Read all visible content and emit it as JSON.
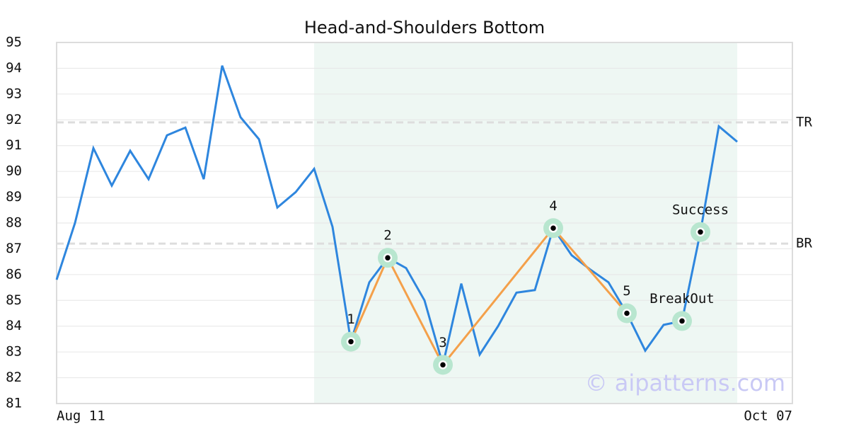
{
  "chart_data": {
    "type": "line",
    "title": "Head-and-Shoulders Bottom",
    "categories": [
      "Aug 11",
      null,
      null,
      null,
      null,
      null,
      null,
      null,
      null,
      null,
      null,
      null,
      null,
      null,
      null,
      null,
      null,
      null,
      null,
      null,
      null,
      null,
      null,
      null,
      null,
      null,
      null,
      null,
      null,
      null,
      null,
      null,
      null,
      null,
      null,
      null,
      null,
      null,
      null,
      null,
      "Oct 07"
    ],
    "values": [
      85.8,
      88.0,
      90.9,
      89.45,
      90.8,
      89.7,
      91.4,
      91.7,
      89.7,
      94.1,
      92.1,
      91.25,
      88.6,
      89.2,
      90.1,
      87.85,
      83.4,
      85.7,
      86.65,
      86.25,
      85.0,
      82.5,
      85.65,
      82.9,
      84.0,
      85.3,
      85.4,
      87.8,
      86.75,
      86.2,
      85.7,
      84.5,
      83.05,
      84.05,
      84.2,
      87.65,
      91.75,
      91.15,
      null,
      null,
      null
    ],
    "color": "#2e86de",
    "ylim": [
      81,
      95
    ],
    "yticks": [
      81,
      82,
      83,
      84,
      85,
      86,
      87,
      88,
      89,
      90,
      91,
      92,
      93,
      94,
      95
    ],
    "grid": true,
    "highlight": {
      "from": 14,
      "to": 37,
      "color": "#eef7f3"
    },
    "levels": [
      {
        "label": "TR",
        "value": 91.9
      },
      {
        "label": "BR",
        "value": 87.2
      }
    ],
    "pattern": {
      "color": "#f4a04a",
      "x": [
        16,
        18,
        21,
        27,
        31
      ],
      "values": [
        83.4,
        86.65,
        82.5,
        87.8,
        84.5
      ],
      "labels": [
        "1",
        "2",
        "3",
        "4",
        "5"
      ]
    },
    "markers": [
      {
        "label": "BreakOut",
        "x": 34,
        "value": 84.2
      },
      {
        "label": "Success",
        "x": 35,
        "value": 87.65
      }
    ],
    "watermark": "© aipatterns.com"
  }
}
